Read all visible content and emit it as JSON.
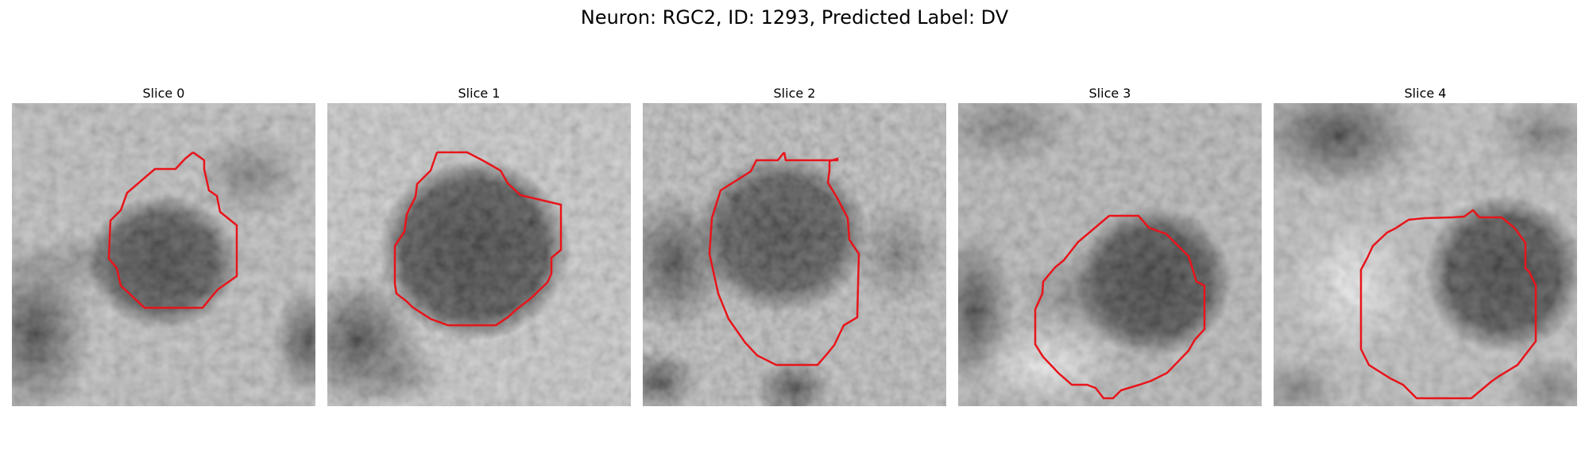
{
  "figure": {
    "title": "Neuron: RGC2, ID: 1293, Predicted Label: DV"
  },
  "slices": [
    {
      "label": "Slice 0"
    },
    {
      "label": "Slice 1"
    },
    {
      "label": "Slice 2"
    },
    {
      "label": "Slice 3"
    },
    {
      "label": "Slice 4"
    }
  ],
  "colors": {
    "contour": "#e8141a",
    "background": "#ffffff"
  }
}
